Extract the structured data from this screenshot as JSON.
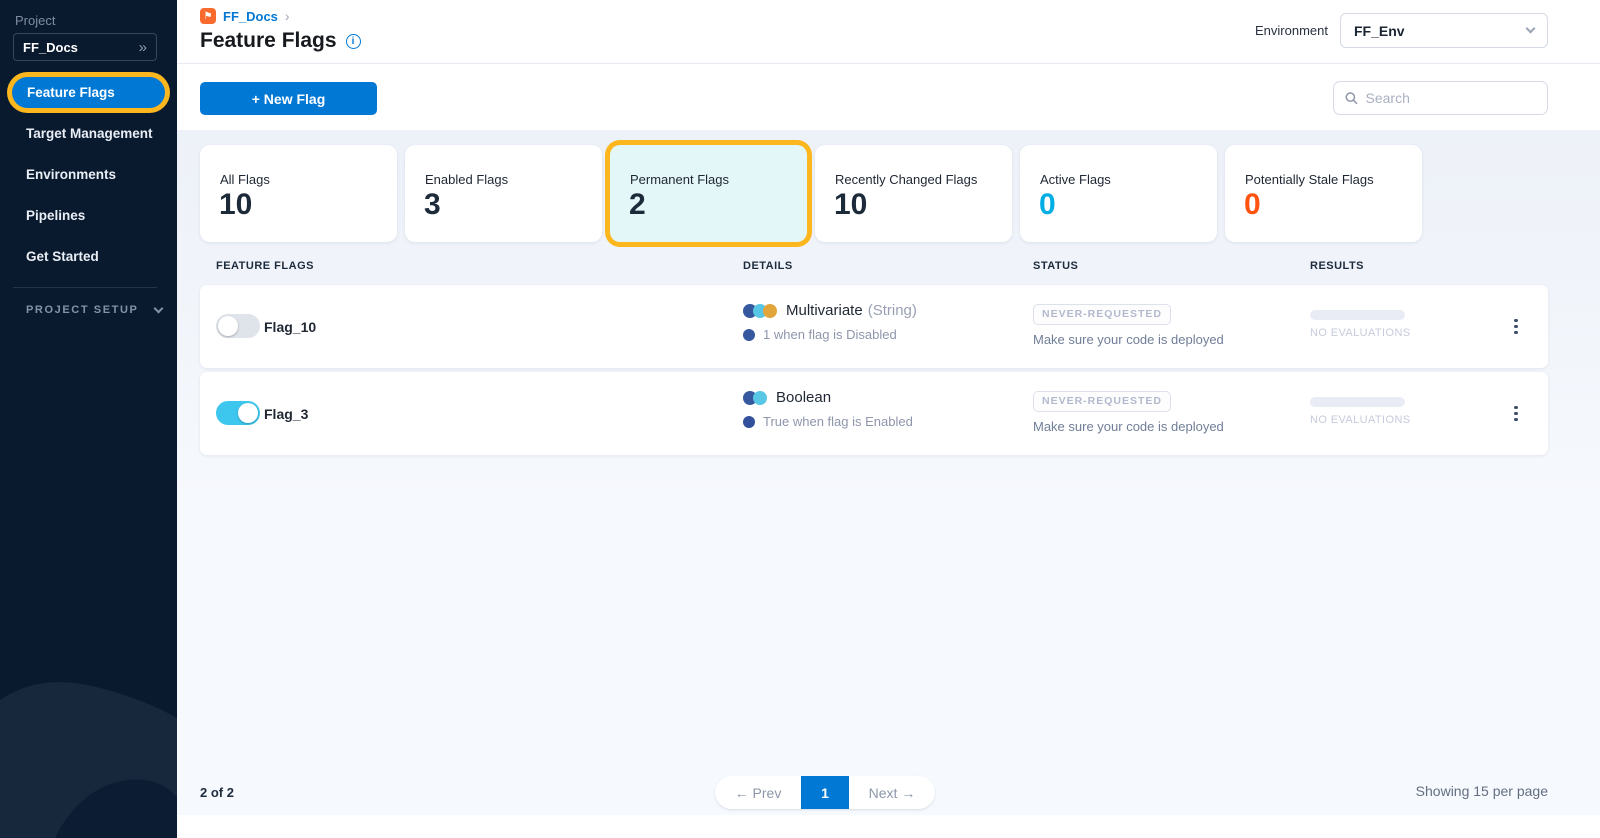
{
  "colors": {
    "primary_blue": "#0278d5",
    "highlight_ring": "#fcb61e",
    "active_flags_count": "#00ade4",
    "stale_flags_count": "#ff5310",
    "toggle_on": "#3dc7ee",
    "sidebar_bg": "#0a1a2e"
  },
  "sidebar": {
    "project_label": "Project",
    "project_name": "FF_Docs",
    "expand_icon": "»",
    "items": [
      {
        "label": "Feature Flags",
        "active": true
      },
      {
        "label": "Target Management",
        "active": false
      },
      {
        "label": "Environments",
        "active": false
      },
      {
        "label": "Pipelines",
        "active": false
      },
      {
        "label": "Get Started",
        "active": false
      }
    ],
    "project_setup_label": "PROJECT SETUP"
  },
  "header": {
    "breadcrumb": "FF_Docs",
    "breadcrumb_separator": "›",
    "title": "Feature Flags",
    "environment_label": "Environment",
    "environment_value": "FF_Env"
  },
  "toolbar": {
    "new_flag_label": "+ New Flag",
    "search_placeholder": "Search"
  },
  "stats": [
    {
      "label": "All Flags",
      "value": "10",
      "selected": false
    },
    {
      "label": "Enabled Flags",
      "value": "3",
      "selected": false
    },
    {
      "label": "Permanent Flags",
      "value": "2",
      "selected": true
    },
    {
      "label": "Recently Changed Flags",
      "value": "10",
      "selected": false
    },
    {
      "label": "Active Flags",
      "value": "0",
      "selected": false,
      "value_color": "#00ade4"
    },
    {
      "label": "Potentially Stale Flags",
      "value": "0",
      "selected": false,
      "value_color": "#ff5310"
    }
  ],
  "table": {
    "columns": [
      "FEATURE FLAGS",
      "DETAILS",
      "STATUS",
      "RESULTS"
    ],
    "rows": [
      {
        "name": "Flag_10",
        "enabled": false,
        "type": "Multivariate",
        "type_detail": "(String)",
        "type_dots": [
          "#35589e",
          "#58c7e5",
          "#e1a53c"
        ],
        "variant_dot": "#35589e",
        "variant_text": "1 when flag is Disabled",
        "status_badge": "NEVER-REQUESTED",
        "status_text": "Make sure your code is deployed",
        "results_text": "NO EVALUATIONS"
      },
      {
        "name": "Flag_3",
        "enabled": true,
        "type": "Boolean",
        "type_detail": "",
        "type_dots": [
          "#35589e",
          "#58c7e5"
        ],
        "variant_dot": "#32509b",
        "variant_text": "True when flag is Enabled",
        "status_badge": "NEVER-REQUESTED",
        "status_text": "Make sure your code is deployed",
        "results_text": "NO EVALUATIONS"
      }
    ]
  },
  "footer": {
    "count_text": "2 of 2",
    "prev_label": "← Prev",
    "page": "1",
    "next_label": "Next →",
    "per_page_text": "Showing 15 per page"
  }
}
